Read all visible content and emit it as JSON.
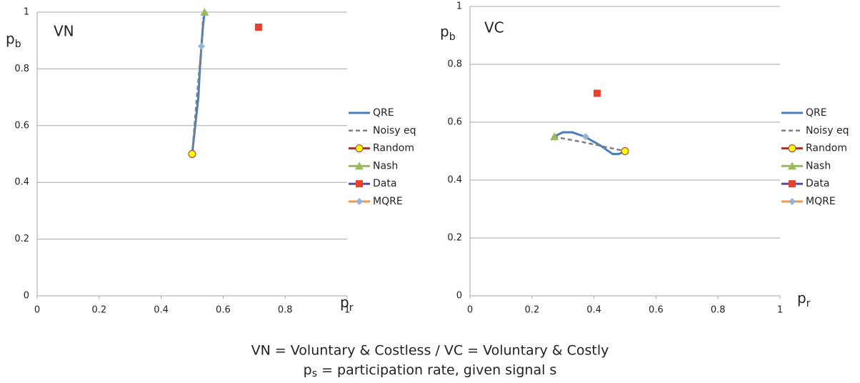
{
  "chart_data": [
    {
      "type": "scatter",
      "title": "VN",
      "ylabel": "p",
      "ylabel_sub": "b",
      "xlabel": "p",
      "xlabel_sub": "r",
      "xlim": [
        0,
        1
      ],
      "ylim": [
        0,
        1
      ],
      "xticks": [
        0,
        0.2,
        0.4,
        0.6,
        0.8,
        1
      ],
      "yticks": [
        0,
        0.2,
        0.4,
        0.6,
        0.8,
        1
      ],
      "grid": true,
      "series": [
        {
          "name": "QRE",
          "style": "solid",
          "color": "#4a7ebb",
          "x": [
            0.5,
            0.51,
            0.52,
            0.525,
            0.53,
            0.535,
            0.54
          ],
          "values": [
            0.5,
            0.6,
            0.7,
            0.8,
            0.88,
            0.95,
            1
          ]
        },
        {
          "name": "Noisy eq",
          "style": "dashed",
          "color": "#808080",
          "x": [
            0.5,
            0.515,
            0.53,
            0.535
          ],
          "values": [
            0.5,
            0.7,
            0.88,
            0.98
          ]
        },
        {
          "name": "Random",
          "style": "marker",
          "marker": "circle",
          "color": "#a0342a",
          "marker_color": "#ffff00",
          "x": [
            0.5
          ],
          "values": [
            0.5
          ]
        },
        {
          "name": "Nash",
          "style": "marker",
          "marker": "triangle",
          "color": "#9bbb59",
          "marker_color": "#9bbb59",
          "x": [
            0.54
          ],
          "values": [
            1
          ]
        },
        {
          "name": "Data",
          "style": "marker",
          "marker": "square",
          "color": "#5a4a9c",
          "marker_color": "#e8402a",
          "x": [
            0.714
          ],
          "values": [
            0.947
          ]
        },
        {
          "name": "MQRE",
          "style": "marker",
          "marker": "diamond",
          "color": "#f79646",
          "marker_color": "#95b3d7",
          "x": [
            0.53
          ],
          "values": [
            0.88
          ]
        }
      ]
    },
    {
      "type": "scatter",
      "title": "VC",
      "ylabel": "p",
      "ylabel_sub": "b",
      "xlabel": "p",
      "xlabel_sub": "r",
      "xlim": [
        0,
        1
      ],
      "ylim": [
        0,
        1
      ],
      "xticks": [
        0,
        0.2,
        0.4,
        0.6,
        0.8,
        1
      ],
      "yticks": [
        0,
        0.2,
        0.4,
        0.6,
        0.8,
        1
      ],
      "grid": true,
      "series": [
        {
          "name": "QRE",
          "style": "solid",
          "color": "#4a7ebb",
          "x": [
            0.27,
            0.3,
            0.33,
            0.37,
            0.42,
            0.46,
            0.48,
            0.5
          ],
          "values": [
            0.55,
            0.565,
            0.565,
            0.55,
            0.52,
            0.49,
            0.49,
            0.5
          ]
        },
        {
          "name": "Noisy eq",
          "style": "dashed",
          "color": "#808080",
          "x": [
            0.27,
            0.37,
            0.5
          ],
          "values": [
            0.55,
            0.53,
            0.5
          ]
        },
        {
          "name": "Random",
          "style": "marker",
          "marker": "circle",
          "color": "#a0342a",
          "marker_color": "#ffff00",
          "x": [
            0.5
          ],
          "values": [
            0.5
          ]
        },
        {
          "name": "Nash",
          "style": "marker",
          "marker": "triangle",
          "color": "#9bbb59",
          "marker_color": "#9bbb59",
          "x": [
            0.272
          ],
          "values": [
            0.55
          ]
        },
        {
          "name": "Data",
          "style": "marker",
          "marker": "square",
          "color": "#5a4a9c",
          "marker_color": "#e8402a",
          "x": [
            0.41
          ],
          "values": [
            0.7
          ]
        },
        {
          "name": "MQRE",
          "style": "marker",
          "marker": "diamond",
          "color": "#f79646",
          "marker_color": "#95b3d7",
          "x": [
            0.373
          ],
          "values": [
            0.55
          ]
        }
      ]
    }
  ],
  "caption": {
    "line1": "VN = Voluntary & Costless / VC = Voluntary & Costly",
    "line2_base": "p",
    "line2_sub": "s",
    "line2_rest": " = participation rate, given signal s"
  }
}
